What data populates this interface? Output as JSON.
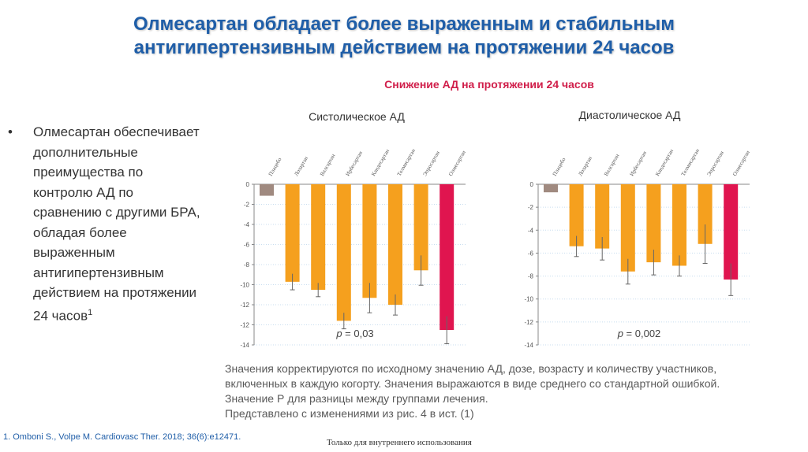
{
  "title_line1": "Олмесартан обладает более выраженным и стабильным",
  "title_line2": "антигипертензивным действием на протяжении 24 часов",
  "subtitle": "Снижение АД на протяжении 24 часов",
  "bullet": {
    "marker": "•",
    "text": "Олмесартан обеспечивает дополнительные преимущества по контролю АД по сравнению с другими БРА, обладая более выраженным антигипертензивным действием на протяжении 24 часов",
    "sup": "1"
  },
  "chart_data": [
    {
      "type": "bar",
      "title": "Систолическое АД",
      "categories": [
        "Плацебо",
        "Лозартан",
        "Валсартан",
        "Ирбесартан",
        "Кандесартан",
        "Телмисартан",
        "Эпросартан",
        "Олмесартан"
      ],
      "values": [
        -1.0,
        -8.5,
        -9.2,
        -11.9,
        -9.9,
        -10.5,
        -7.5,
        -12.7
      ],
      "errors": [
        0.0,
        0.7,
        0.6,
        0.7,
        1.3,
        0.9,
        1.3,
        1.2
      ],
      "colors": [
        "#a08a80",
        "#f5a01e",
        "#f5a01e",
        "#f5a01e",
        "#f5a01e",
        "#f5a01e",
        "#f5a01e",
        "#e0154f"
      ],
      "yticks": [
        "0",
        "-2",
        "-4",
        "-6",
        "-8",
        "-10",
        "-12",
        "-12",
        "-14"
      ],
      "ylim": [
        -14,
        0
      ],
      "p_label": "p",
      "p_value": " = 0,03"
    },
    {
      "type": "bar",
      "title": "Диастолическое АД",
      "categories": [
        "Плацебо",
        "Лозартан",
        "Валсартан",
        "Ирбесартан",
        "Кандесартан",
        "Телмисартан",
        "Эпросартан",
        "Олмесартан"
      ],
      "values": [
        -0.7,
        -5.4,
        -5.6,
        -7.6,
        -6.8,
        -7.1,
        -5.2,
        -8.3
      ],
      "errors": [
        0.0,
        0.9,
        1.0,
        1.1,
        1.1,
        0.9,
        1.7,
        1.4
      ],
      "colors": [
        "#a08a80",
        "#f5a01e",
        "#f5a01e",
        "#f5a01e",
        "#f5a01e",
        "#f5a01e",
        "#f5a01e",
        "#e0154f"
      ],
      "yticks": [
        "0",
        "-2",
        "-4",
        "-6",
        "-8",
        "-10",
        "-12",
        "-14"
      ],
      "ylim": [
        -14,
        0
      ],
      "p_label": "p",
      "p_value": " = 0,002"
    }
  ],
  "notes": [
    "Значения корректируются по исходному значению АД, дозе, возрасту и количеству участников,",
    "включенных в каждую когорту. Значения выражаются в виде среднего со стандартной ошибкой.",
    "Значение Р для разницы между группами лечения.",
    "Представлено с изменениями из рис. 4 в ист. (1)"
  ],
  "reference": "1. Omboni S., Volpe M. Cardiovasc Ther. 2018; 36(6):e12471.",
  "internal_use": "Только для внутреннего использования"
}
